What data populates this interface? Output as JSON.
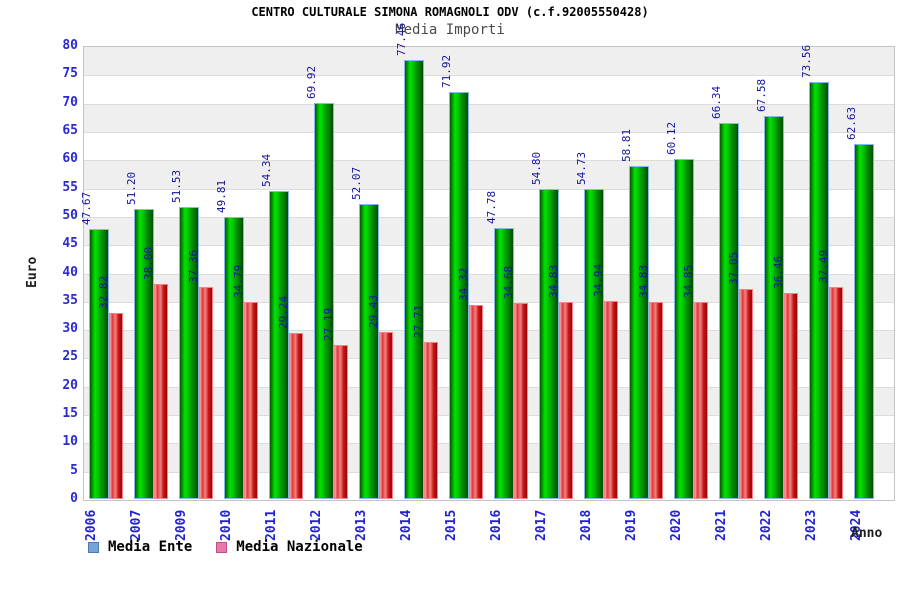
{
  "header": {
    "title": "CENTRO CULTURALE SIMONA ROMAGNOLI ODV (c.f.92005550428)",
    "subtitle": "Media Importi"
  },
  "colors": {
    "bar_green": "#00c300",
    "bar_red": "#cc1515",
    "legend_blue_swatch": "#74a3d6",
    "legend_pink_swatch": "#e679a9",
    "axis_tick_blue": "#2a2ad0",
    "value_label_navy": "#15159c",
    "band_gray": "#efefef",
    "gridline_gray": "#dcdcdc"
  },
  "chart_data": {
    "type": "bar",
    "title": "CENTRO CULTURALE SIMONA ROMAGNOLI ODV (c.f.92005550428)",
    "subtitle": "Media Importi",
    "xlabel": "Anno",
    "ylabel": "Euro",
    "ylim": [
      0,
      80
    ],
    "ytick_step": 5,
    "grid": "horizontal-bands-alternating",
    "legend_position": "bottom-left",
    "value_labels": "rotated-90-above-bars",
    "categories": [
      "2006",
      "2007",
      "2009",
      "2010",
      "2011",
      "2012",
      "2013",
      "2014",
      "2015",
      "2016",
      "2017",
      "2018",
      "2019",
      "2020",
      "2021",
      "2022",
      "2023",
      "2024"
    ],
    "series": [
      {
        "name": "Media Ente",
        "color": "green",
        "values": [
          47.67,
          51.2,
          51.53,
          49.81,
          54.34,
          69.92,
          52.07,
          77.46,
          71.92,
          47.78,
          54.8,
          54.73,
          58.81,
          60.12,
          66.34,
          67.58,
          73.56,
          62.63
        ]
      },
      {
        "name": "Media Nazionale",
        "color": "red",
        "values": [
          32.82,
          38.0,
          37.36,
          34.79,
          29.24,
          27.19,
          29.43,
          27.71,
          34.32,
          34.68,
          34.83,
          34.94,
          34.83,
          34.85,
          37.05,
          36.46,
          37.49,
          null
        ]
      }
    ]
  }
}
